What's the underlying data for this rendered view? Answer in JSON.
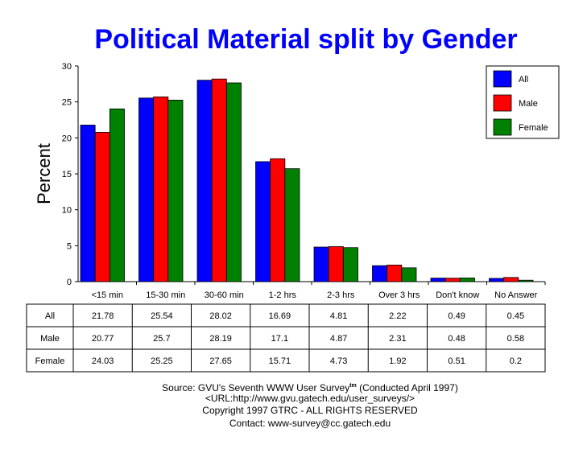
{
  "chart_data": {
    "type": "bar",
    "title": "Political Material split by Gender",
    "xlabel": "",
    "ylabel": "Percent",
    "ylim": [
      0,
      30
    ],
    "yticks": [
      0,
      5,
      10,
      15,
      20,
      25,
      30
    ],
    "grid": false,
    "legend_position": "top-right",
    "categories": [
      "<15 min",
      "15-30 min",
      "30-60 min",
      "1-2 hrs",
      "2-3 hrs",
      "Over 3 hrs",
      "Don't know",
      "No Answer"
    ],
    "series": [
      {
        "name": "All",
        "color": "#0000ff",
        "values": [
          21.78,
          25.54,
          28.02,
          16.69,
          4.81,
          2.22,
          0.49,
          0.45
        ]
      },
      {
        "name": "Male",
        "color": "#ff0000",
        "values": [
          20.77,
          25.7,
          28.19,
          17.1,
          4.87,
          2.31,
          0.48,
          0.58
        ]
      },
      {
        "name": "Female",
        "color": "#008000",
        "values": [
          24.03,
          25.25,
          27.65,
          15.71,
          4.73,
          1.92,
          0.51,
          0.2
        ]
      }
    ],
    "table_values": [
      [
        "21.78",
        "25.54",
        "28.02",
        "16.69",
        "4.81",
        "2.22",
        "0.49",
        "0.45"
      ],
      [
        "20.77",
        "25.7",
        "28.19",
        "17.1",
        "4.87",
        "2.31",
        "0.48",
        "0.58"
      ],
      [
        "24.03",
        "25.25",
        "27.65",
        "15.71",
        "4.73",
        "1.92",
        "0.51",
        "0.2"
      ]
    ]
  },
  "footer": {
    "source": "Source: GVU's Seventh WWW User Survey",
    "tm": "tm",
    "conducted": " (Conducted April 1997)",
    "url": "<URL:http://www.gvu.gatech.edu/user_surveys/>",
    "copyright": "Copyright 1997 GTRC - ALL RIGHTS RESERVED",
    "contact": "Contact: www-survey@cc.gatech.edu"
  }
}
